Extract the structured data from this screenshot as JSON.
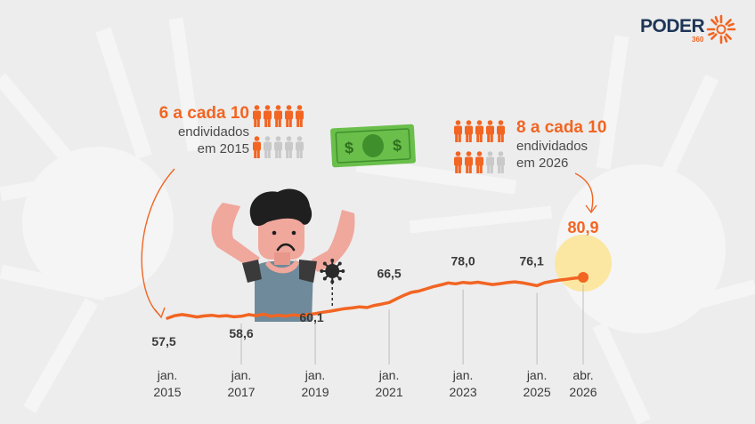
{
  "brand": {
    "name": "PODER",
    "number": "360"
  },
  "stat_left": {
    "headline": "6 a cada 10",
    "line1": "endividados",
    "line2": "em 2015",
    "filled": 6,
    "total": 10
  },
  "stat_right": {
    "headline": "8 a cada 10",
    "line1": "endividados",
    "line2": "em 2026",
    "filled": 8,
    "total": 10
  },
  "colors": {
    "accent": "#f26522",
    "muted": "#c9c9c9",
    "highlight": "#fbe7a1",
    "text": "#3a3a3a"
  },
  "icons": [
    "money-bill-icon",
    "virus-icon",
    "sad-person-illustration"
  ],
  "chart_data": {
    "type": "line",
    "ylim": [
      50,
      85
    ],
    "x_ticks": [
      {
        "month": "jan.",
        "year": "2015",
        "t": 2015.0
      },
      {
        "month": "jan.",
        "year": "2017",
        "t": 2017.0
      },
      {
        "month": "jan.",
        "year": "2019",
        "t": 2019.0
      },
      {
        "month": "jan.",
        "year": "2021",
        "t": 2021.0
      },
      {
        "month": "jan.",
        "year": "2023",
        "t": 2023.0
      },
      {
        "month": "jan.",
        "year": "2025",
        "t": 2025.0
      },
      {
        "month": "abr.",
        "year": "2026",
        "t": 2026.25
      }
    ],
    "labels": [
      {
        "t": 2015.0,
        "value": 57.5,
        "text": "57,5"
      },
      {
        "t": 2017.0,
        "value": 58.6,
        "text": "58,6"
      },
      {
        "t": 2019.0,
        "value": 60.1,
        "text": "60,1"
      },
      {
        "t": 2021.0,
        "value": 66.5,
        "text": "66,5"
      },
      {
        "t": 2023.0,
        "value": 78.0,
        "text": "78,0"
      },
      {
        "t": 2025.0,
        "value": 76.1,
        "text": "76,1"
      },
      {
        "t": 2026.25,
        "value": 80.9,
        "text": "80,9"
      }
    ],
    "series": [
      {
        "points": [
          [
            2015.0,
            57.5
          ],
          [
            2015.2,
            59.0
          ],
          [
            2015.4,
            59.6
          ],
          [
            2015.6,
            59.0
          ],
          [
            2015.8,
            58.2
          ],
          [
            2016.0,
            58.8
          ],
          [
            2016.2,
            59.2
          ],
          [
            2016.4,
            58.6
          ],
          [
            2016.6,
            59.0
          ],
          [
            2016.8,
            58.3
          ],
          [
            2017.0,
            58.6
          ],
          [
            2017.2,
            59.6
          ],
          [
            2017.4,
            58.9
          ],
          [
            2017.6,
            59.8
          ],
          [
            2017.8,
            58.6
          ],
          [
            2018.0,
            59.2
          ],
          [
            2018.2,
            58.7
          ],
          [
            2018.4,
            59.4
          ],
          [
            2018.6,
            59.0
          ],
          [
            2018.8,
            59.6
          ],
          [
            2019.0,
            60.1
          ],
          [
            2019.2,
            60.9
          ],
          [
            2019.4,
            61.5
          ],
          [
            2019.6,
            62.3
          ],
          [
            2019.8,
            63.0
          ],
          [
            2020.0,
            63.4
          ],
          [
            2020.2,
            64.0
          ],
          [
            2020.4,
            63.6
          ],
          [
            2020.6,
            64.8
          ],
          [
            2020.8,
            65.6
          ],
          [
            2021.0,
            66.5
          ],
          [
            2021.2,
            68.6
          ],
          [
            2021.4,
            70.6
          ],
          [
            2021.6,
            72.3
          ],
          [
            2021.8,
            73.0
          ],
          [
            2022.0,
            74.3
          ],
          [
            2022.2,
            75.6
          ],
          [
            2022.4,
            76.6
          ],
          [
            2022.6,
            77.7
          ],
          [
            2022.8,
            77.2
          ],
          [
            2023.0,
            78.0
          ],
          [
            2023.2,
            77.6
          ],
          [
            2023.4,
            78.1
          ],
          [
            2023.6,
            77.4
          ],
          [
            2023.8,
            76.8
          ],
          [
            2024.0,
            77.3
          ],
          [
            2024.2,
            77.9
          ],
          [
            2024.4,
            78.3
          ],
          [
            2024.6,
            77.8
          ],
          [
            2024.8,
            77.0
          ],
          [
            2025.0,
            76.1
          ],
          [
            2025.2,
            77.8
          ],
          [
            2025.4,
            78.6
          ],
          [
            2025.6,
            79.3
          ],
          [
            2025.8,
            79.8
          ],
          [
            2026.0,
            80.4
          ],
          [
            2026.25,
            80.9
          ]
        ]
      }
    ],
    "events": [
      {
        "t": 2019.8,
        "icon": "virus-icon"
      }
    ]
  }
}
